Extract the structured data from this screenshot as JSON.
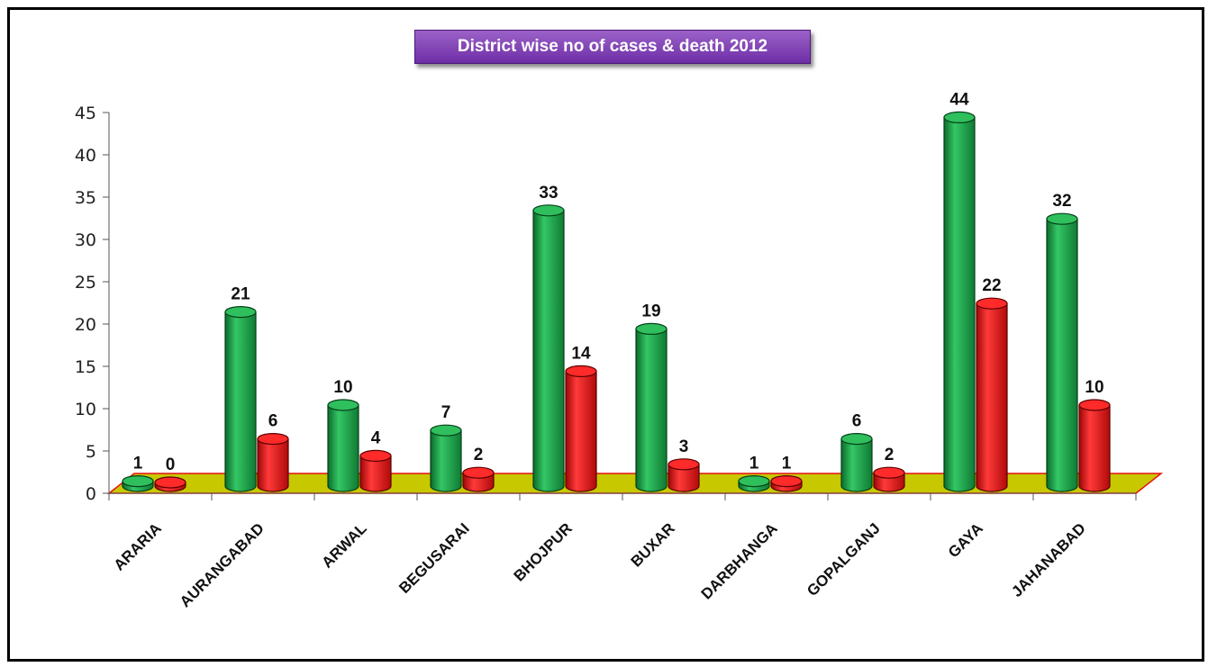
{
  "chart_data": {
    "type": "bar",
    "title": "District wise no of cases & death 2012",
    "categories": [
      "ARARIA",
      "AURANGABAD",
      "ARWAL",
      "BEGUSARAI",
      "BHOJPUR",
      "BUXAR",
      "DARBHANGA",
      "GOPALGANJ",
      "GAYA",
      "JAHANABAD"
    ],
    "series": [
      {
        "values": [
          1,
          21,
          10,
          7,
          33,
          19,
          1,
          6,
          44,
          32
        ],
        "color": "#1ea04a"
      },
      {
        "values": [
          0,
          6,
          4,
          2,
          14,
          3,
          1,
          2,
          22,
          10
        ],
        "color": "#e41212"
      }
    ],
    "y_ticks": [
      "0",
      "5",
      "10",
      "15",
      "20",
      "25",
      "30",
      "35",
      "40",
      "45"
    ],
    "ylim": [
      0,
      45
    ],
    "floor_color": "#c8c800",
    "grid": false,
    "legend": "none"
  }
}
